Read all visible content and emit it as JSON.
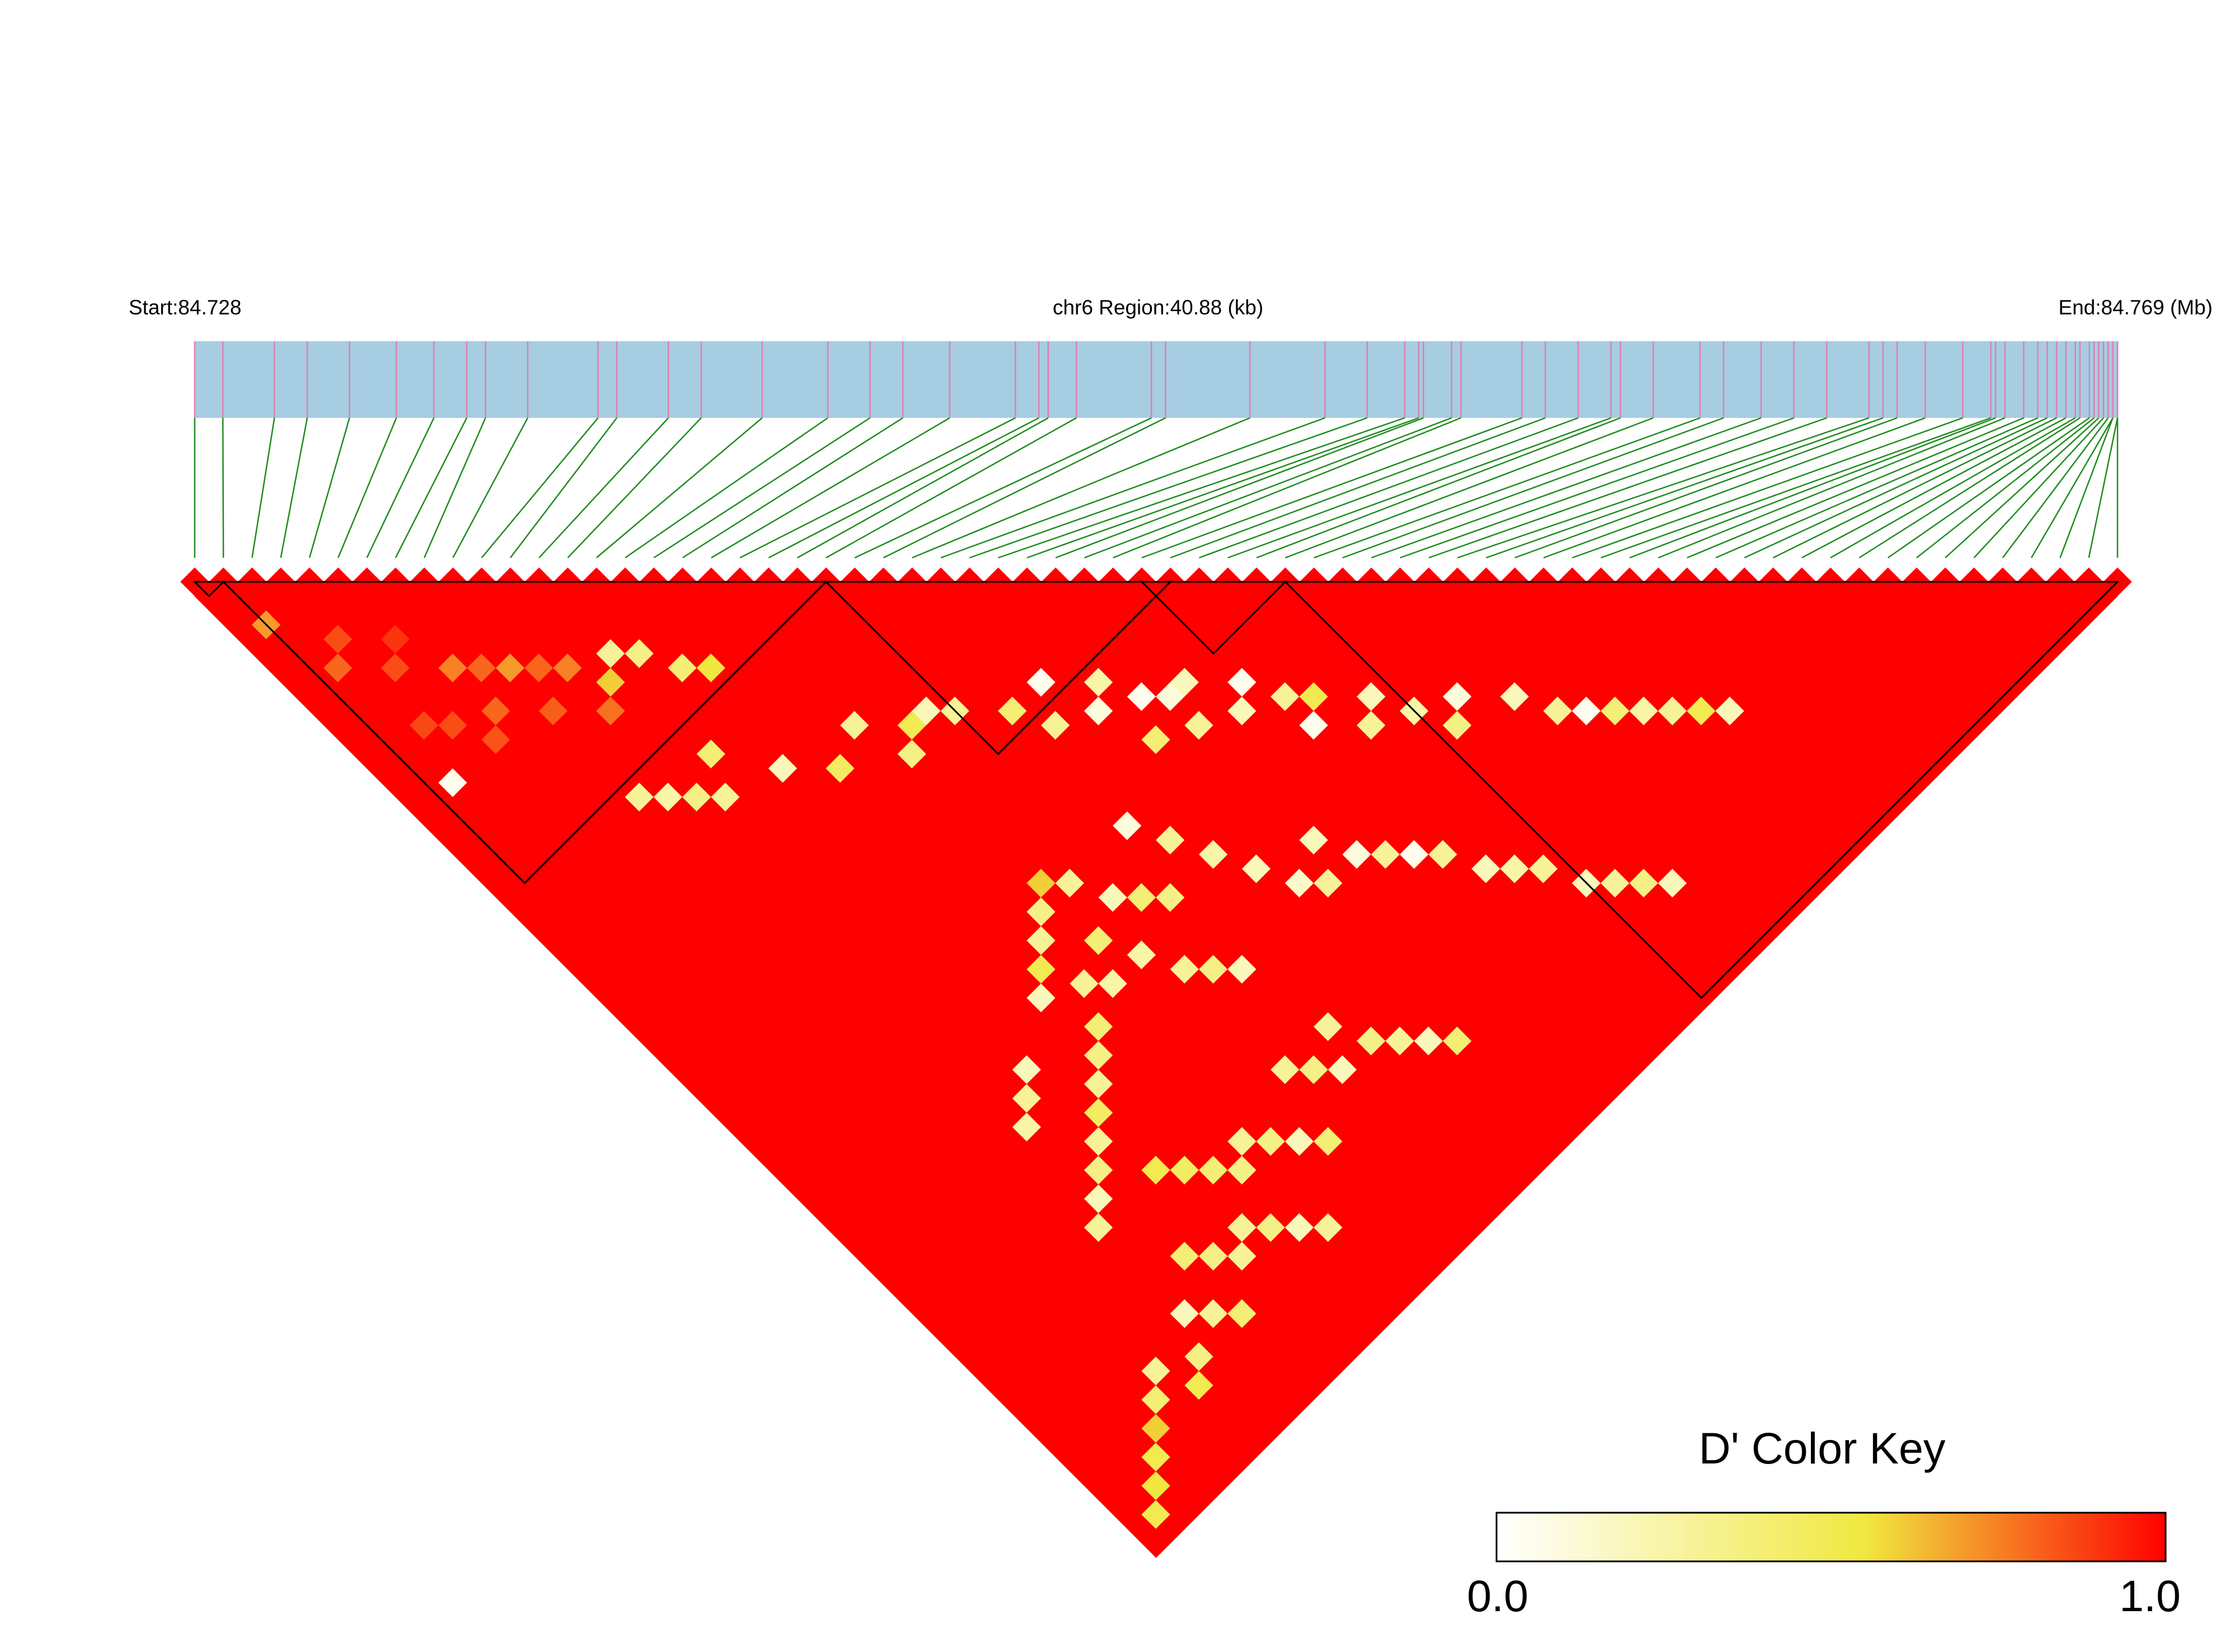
{
  "header": {
    "start_label": "Start:84.728",
    "region_label": "chr6 Region:40.88 (kb)",
    "end_label": "End:84.769 (Mb)"
  },
  "colors": {
    "track_fill": "#a6cde2",
    "snp_tick": "#e07fb0",
    "connector": "#1e8c1e",
    "high_ld": "#ff0000",
    "mid_ld": "#f0e840",
    "low_ld": "#ffffff",
    "block_border": "#000000"
  },
  "legend": {
    "title": "D' Color Key",
    "min_label": "0.0",
    "max_label": "1.0"
  },
  "chart_data": {
    "type": "heatmap",
    "kind": "linkage-disequilibrium triangle",
    "chromosome": "chr6",
    "region_start_mb": 84.728,
    "region_end_mb": 84.769,
    "region_length_kb": 40.88,
    "n_snps": 68,
    "snp_positions_mb": [
      84.728,
      84.7286,
      84.7297,
      84.7304,
      84.7313,
      84.7323,
      84.7331,
      84.7338,
      84.7342,
      84.7351,
      84.7366,
      84.737,
      84.7381,
      84.7388,
      84.7401,
      84.7415,
      84.7424,
      84.7431,
      84.7441,
      84.7455,
      84.746,
      84.7462,
      84.7468,
      84.7484,
      84.7487,
      84.7505,
      84.7521,
      84.753,
      84.7538,
      84.7541,
      84.7542,
      84.7548,
      84.755,
      84.7563,
      84.7568,
      84.7575,
      84.7582,
      84.7584,
      84.7591,
      84.7601,
      84.7606,
      84.7614,
      84.7621,
      84.7628,
      84.7637,
      84.764,
      84.7643,
      84.7649,
      84.7657,
      84.7663,
      84.7664,
      84.7666,
      84.767,
      84.7673,
      84.7675,
      84.7677,
      84.7679,
      84.7681,
      84.7682,
      84.7684,
      84.7685,
      84.7686,
      84.7687,
      84.7688,
      84.7689,
      84.7689,
      84.769,
      84.769
    ],
    "d_prime_scale": {
      "min": 0.0,
      "max": 1.0,
      "colors": [
        "#ffffff",
        "#f0e840",
        "#ff0000"
      ]
    },
    "ld_blocks_snp_index": [
      [
        0,
        1
      ],
      [
        1,
        22
      ],
      [
        22,
        34
      ],
      [
        33,
        38
      ],
      [
        38,
        67
      ]
    ],
    "default_d_prime": 1.0,
    "low_d_prime_pairs": [
      [
        1,
        4,
        0.7
      ],
      [
        3,
        7,
        0.85
      ],
      [
        5,
        9,
        0.9
      ],
      [
        2,
        8,
        0.8
      ],
      [
        4,
        10,
        0.85
      ],
      [
        6,
        12,
        0.75
      ],
      [
        7,
        13,
        0.8
      ],
      [
        8,
        14,
        0.7
      ],
      [
        9,
        15,
        0.8
      ],
      [
        10,
        16,
        0.75
      ],
      [
        12,
        17,
        0.3
      ],
      [
        13,
        18,
        0.35
      ],
      [
        11,
        18,
        0.6
      ],
      [
        14,
        20,
        0.4
      ],
      [
        15,
        21,
        0.55
      ],
      [
        4,
        14,
        0.85
      ],
      [
        6,
        15,
        0.8
      ],
      [
        8,
        17,
        0.82
      ],
      [
        10,
        19,
        0.78
      ],
      [
        3,
        13,
        0.86
      ],
      [
        5,
        16,
        0.84
      ],
      [
        2,
        16,
        0.05
      ],
      [
        8,
        23,
        0.3
      ],
      [
        9,
        24,
        0.25
      ],
      [
        10,
        25,
        0.35
      ],
      [
        11,
        26,
        0.3
      ],
      [
        12,
        24,
        0.4
      ],
      [
        14,
        27,
        0.2
      ],
      [
        16,
        29,
        0.45
      ],
      [
        18,
        28,
        0.3
      ],
      [
        20,
        30,
        0.5
      ],
      [
        21,
        30,
        0.2
      ],
      [
        19,
        31,
        0.35
      ],
      [
        22,
        31,
        0.3
      ],
      [
        24,
        33,
        0.4
      ],
      [
        26,
        33,
        0.05
      ],
      [
        25,
        35,
        0.3
      ],
      [
        28,
        35,
        0.25
      ],
      [
        27,
        36,
        0.1
      ],
      [
        29,
        37,
        0.05
      ],
      [
        30,
        38,
        0.1
      ],
      [
        31,
        38,
        0.2
      ],
      [
        30,
        40,
        0.3
      ],
      [
        33,
        40,
        0.05
      ],
      [
        28,
        39,
        0.4
      ],
      [
        32,
        41,
        0.2
      ],
      [
        34,
        42,
        0.3
      ],
      [
        35,
        43,
        0.5
      ],
      [
        34,
        44,
        0.05
      ],
      [
        37,
        45,
        0.2
      ],
      [
        36,
        46,
        0.3
      ],
      [
        38,
        47,
        0.25
      ],
      [
        40,
        48,
        0.1
      ],
      [
        39,
        49,
        0.35
      ],
      [
        42,
        50,
        0.2
      ],
      [
        43,
        52,
        0.3
      ],
      [
        44,
        53,
        0.05
      ],
      [
        45,
        54,
        0.4
      ],
      [
        46,
        55,
        0.25
      ],
      [
        47,
        56,
        0.3
      ],
      [
        48,
        57,
        0.5
      ],
      [
        49,
        58,
        0.2
      ],
      [
        24,
        41,
        0.1
      ],
      [
        25,
        43,
        0.3
      ],
      [
        26,
        45,
        0.25
      ],
      [
        27,
        47,
        0.2
      ],
      [
        28,
        49,
        0.15
      ],
      [
        29,
        50,
        0.3
      ],
      [
        23,
        45,
        0.35
      ],
      [
        22,
        44,
        0.4
      ],
      [
        21,
        43,
        0.2
      ],
      [
        20,
        41,
        0.3
      ],
      [
        19,
        40,
        0.6
      ],
      [
        18,
        41,
        0.35
      ],
      [
        17,
        42,
        0.3
      ],
      [
        16,
        43,
        0.5
      ],
      [
        15,
        44,
        0.2
      ],
      [
        20,
        46,
        0.25
      ],
      [
        21,
        48,
        0.3
      ],
      [
        22,
        49,
        0.35
      ],
      [
        23,
        50,
        0.2
      ],
      [
        19,
        44,
        0.4
      ],
      [
        17,
        45,
        0.3
      ],
      [
        18,
        46,
        0.25
      ],
      [
        16,
        47,
        0.4
      ],
      [
        15,
        48,
        0.35
      ],
      [
        14,
        49,
        0.3
      ],
      [
        13,
        50,
        0.45
      ],
      [
        12,
        46,
        0.2
      ],
      [
        11,
        47,
        0.3
      ],
      [
        10,
        48,
        0.25
      ],
      [
        12,
        51,
        0.3
      ],
      [
        11,
        52,
        0.35
      ],
      [
        10,
        53,
        0.2
      ],
      [
        9,
        54,
        0.3
      ],
      [
        13,
        54,
        0.5
      ],
      [
        14,
        55,
        0.45
      ],
      [
        15,
        56,
        0.4
      ],
      [
        16,
        57,
        0.35
      ],
      [
        30,
        48,
        0.2
      ],
      [
        31,
        50,
        0.1
      ],
      [
        32,
        51,
        0.3
      ],
      [
        33,
        52,
        0.05
      ],
      [
        34,
        53,
        0.3
      ],
      [
        35,
        55,
        0.2
      ],
      [
        36,
        56,
        0.25
      ],
      [
        37,
        57,
        0.3
      ],
      [
        38,
        59,
        0.2
      ],
      [
        39,
        60,
        0.3
      ],
      [
        40,
        61,
        0.35
      ],
      [
        41,
        62,
        0.2
      ],
      [
        24,
        55,
        0.3
      ],
      [
        25,
        57,
        0.35
      ],
      [
        26,
        58,
        0.3
      ],
      [
        27,
        59,
        0.2
      ],
      [
        28,
        60,
        0.4
      ],
      [
        21,
        55,
        0.3
      ],
      [
        22,
        56,
        0.35
      ],
      [
        23,
        57,
        0.2
      ],
      [
        17,
        56,
        0.3
      ],
      [
        18,
        57,
        0.35
      ],
      [
        19,
        58,
        0.2
      ],
      [
        20,
        59,
        0.4
      ],
      [
        14,
        59,
        0.3
      ],
      [
        15,
        60,
        0.35
      ],
      [
        16,
        61,
        0.2
      ],
      [
        17,
        62,
        0.3
      ],
      [
        11,
        58,
        0.4
      ],
      [
        12,
        59,
        0.35
      ],
      [
        13,
        60,
        0.3
      ],
      [
        9,
        60,
        0.2
      ],
      [
        10,
        61,
        0.3
      ],
      [
        11,
        62,
        0.4
      ],
      [
        8,
        62,
        0.35
      ],
      [
        7,
        63,
        0.5
      ],
      [
        6,
        61,
        0.3
      ],
      [
        5,
        62,
        0.4
      ],
      [
        4,
        63,
        0.6
      ],
      [
        3,
        64,
        0.5
      ],
      [
        2,
        65,
        0.55
      ],
      [
        1,
        66,
        0.5
      ]
    ]
  }
}
